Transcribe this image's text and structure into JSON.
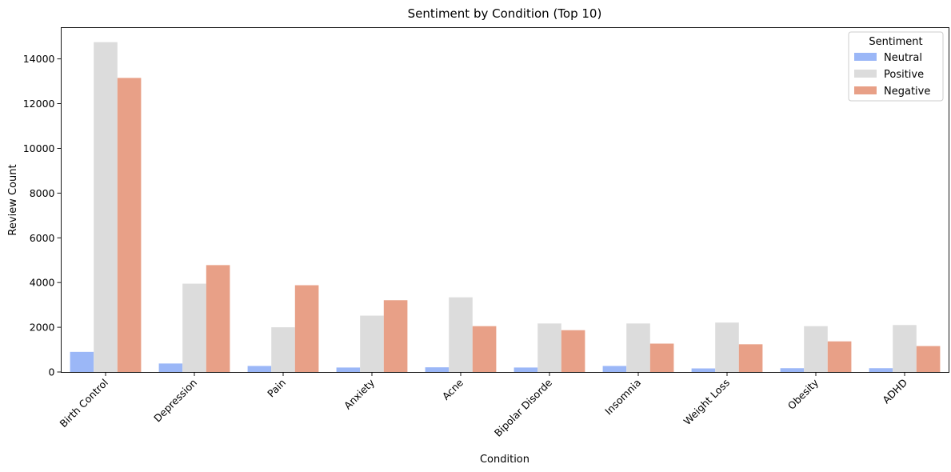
{
  "chart_data": {
    "type": "bar",
    "title": "Sentiment by Condition (Top 10)",
    "xlabel": "Condition",
    "ylabel": "Review Count",
    "ylim": [
      0,
      15400
    ],
    "yticks": [
      0,
      2000,
      4000,
      6000,
      8000,
      10000,
      12000,
      14000
    ],
    "grid": false,
    "legend": {
      "title": "Sentiment",
      "position": "top-right"
    },
    "categories": [
      "Birth Control",
      "Depression",
      "Pain",
      "Anxiety",
      "Acne",
      "Bipolar Disorde",
      "Insomnia",
      "Weight Loss",
      "Obesity",
      "ADHD"
    ],
    "series": [
      {
        "name": "Neutral",
        "color": "#9bb7f7",
        "values": [
          900,
          380,
          270,
          200,
          210,
          200,
          270,
          160,
          170,
          170
        ]
      },
      {
        "name": "Positive",
        "color": "#dcdcdc",
        "values": [
          14750,
          3950,
          2000,
          2520,
          3340,
          2170,
          2170,
          2210,
          2050,
          2100
        ]
      },
      {
        "name": "Negative",
        "color": "#e8a087",
        "values": [
          13150,
          4780,
          3880,
          3210,
          2050,
          1870,
          1270,
          1240,
          1370,
          1160
        ]
      }
    ]
  }
}
